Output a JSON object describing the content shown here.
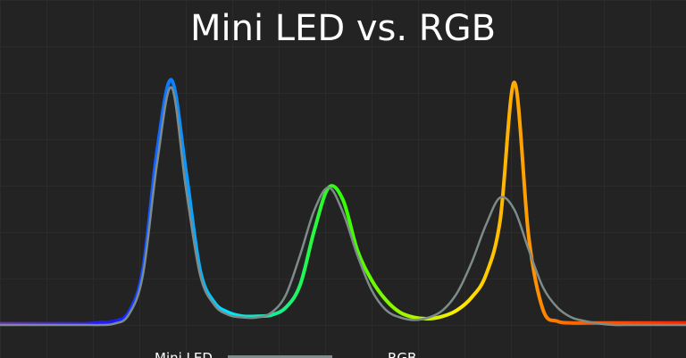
{
  "chart_data": {
    "type": "line",
    "title": "Mini LED vs. RGB",
    "x": [
      0,
      1,
      2,
      3,
      4,
      5,
      6,
      7,
      8,
      9,
      10,
      11,
      12,
      13,
      14,
      15,
      16,
      17,
      18,
      19,
      20,
      21,
      22,
      23,
      24,
      25,
      26,
      27,
      28,
      29,
      30,
      31,
      32,
      33,
      34,
      35,
      36,
      37,
      38,
      39,
      40,
      41,
      42,
      43,
      44,
      45,
      46,
      47,
      48
    ],
    "xlim": [
      0,
      48
    ],
    "ylim": [
      0,
      100
    ],
    "series": [
      {
        "name": "RGB",
        "color": [
          "#6a2fb0",
          "#1a1aff",
          "#00e5ff",
          "#33ff00",
          "#ffee00",
          "#ff6600",
          "#ff2200"
        ],
        "values": [
          0.5,
          0.5,
          0.5,
          0.5,
          0.5,
          0.5,
          0.5,
          1,
          1.5,
          5,
          22,
          70,
          98,
          62,
          22,
          9,
          5,
          3.5,
          3.5,
          4,
          7,
          16,
          38,
          55,
          50,
          30,
          18,
          10,
          5,
          3,
          2.5,
          3.5,
          6,
          11,
          20,
          42,
          97,
          35,
          6,
          1.5,
          0.8,
          0.8,
          0.8,
          0.8,
          0.8,
          0.8,
          0.8,
          0.8,
          0.8
        ]
      },
      {
        "name": "Mini LED",
        "color": "#7d8b8b",
        "values": [
          0,
          0,
          0,
          0,
          0,
          0,
          0,
          0,
          0.5,
          4,
          20,
          65,
          95,
          55,
          20,
          8,
          4,
          3,
          3,
          5,
          12,
          28,
          46,
          55,
          45,
          28,
          14,
          6,
          3,
          2,
          3,
          6,
          13,
          25,
          40,
          51,
          46,
          30,
          15,
          7,
          3,
          1.5,
          0.5,
          0,
          0,
          0,
          0,
          0,
          0
        ]
      }
    ]
  }
}
